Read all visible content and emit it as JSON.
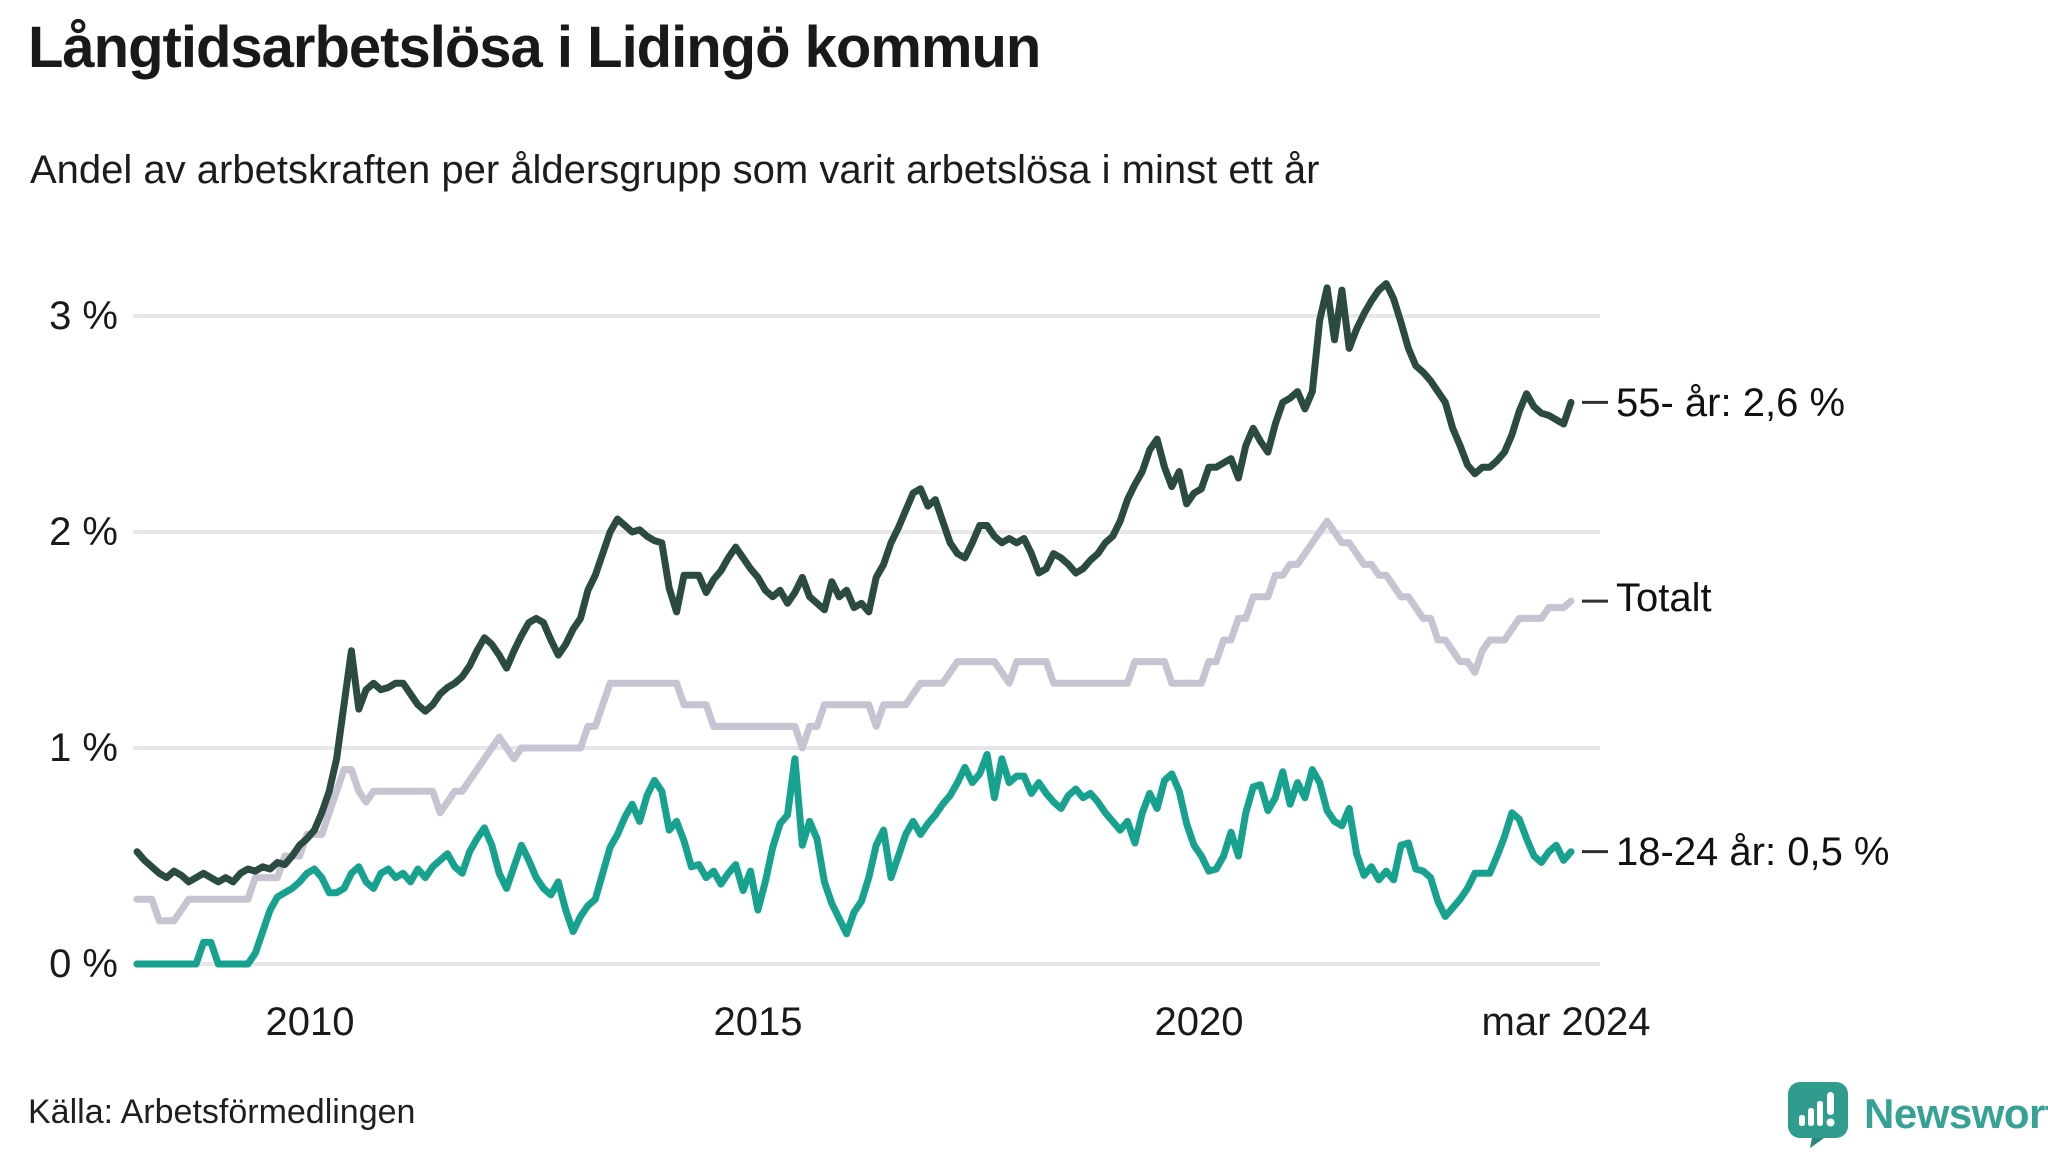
{
  "header": {
    "title": "Långtidsarbetslösa i Lidingö kommun",
    "subtitle": "Andel av arbetskraften per åldersgrupp som varit arbetslösa i minst ett år"
  },
  "chart_data": {
    "type": "line",
    "title": "Långtidsarbetslösa i Lidingö kommun",
    "frequency": "monthly",
    "x_start": "2008-01",
    "x_end": "2024-03",
    "grid": true,
    "legend_position": "right-of-line-end",
    "y_axis": {
      "ticks": [
        "0 %",
        "1 %",
        "2 %",
        "3 %"
      ],
      "unit": "%",
      "range": [
        0,
        3.3
      ]
    },
    "x_axis": {
      "ticks": [
        "2010",
        "2015",
        "2020",
        "mar 2024"
      ]
    },
    "series": [
      {
        "name": "55- år",
        "end_label": "55- år: 2,6 %",
        "end_value": 2.6,
        "color": "#2b4a42",
        "values": [
          0.52,
          0.48,
          0.45,
          0.42,
          0.4,
          0.43,
          0.41,
          0.38,
          0.4,
          0.42,
          0.4,
          0.38,
          0.4,
          0.38,
          0.42,
          0.44,
          0.43,
          0.45,
          0.44,
          0.47,
          0.46,
          0.5,
          0.55,
          0.58,
          0.62,
          0.7,
          0.8,
          0.95,
          1.2,
          1.45,
          1.18,
          1.27,
          1.3,
          1.27,
          1.28,
          1.3,
          1.3,
          1.25,
          1.2,
          1.17,
          1.2,
          1.25,
          1.28,
          1.3,
          1.33,
          1.38,
          1.45,
          1.51,
          1.48,
          1.43,
          1.37,
          1.45,
          1.52,
          1.58,
          1.6,
          1.58,
          1.5,
          1.43,
          1.48,
          1.55,
          1.6,
          1.73,
          1.8,
          1.9,
          2.0,
          2.06,
          2.03,
          2.0,
          2.01,
          1.98,
          1.96,
          1.95,
          1.74,
          1.63,
          1.8,
          1.8,
          1.8,
          1.72,
          1.78,
          1.82,
          1.88,
          1.93,
          1.88,
          1.83,
          1.79,
          1.73,
          1.7,
          1.73,
          1.67,
          1.72,
          1.79,
          1.7,
          1.67,
          1.64,
          1.77,
          1.7,
          1.73,
          1.65,
          1.67,
          1.63,
          1.79,
          1.85,
          1.95,
          2.02,
          2.1,
          2.18,
          2.2,
          2.12,
          2.15,
          2.05,
          1.95,
          1.9,
          1.88,
          1.95,
          2.03,
          2.03,
          1.98,
          1.95,
          1.97,
          1.95,
          1.97,
          1.9,
          1.81,
          1.83,
          1.9,
          1.88,
          1.85,
          1.81,
          1.83,
          1.87,
          1.9,
          1.95,
          1.98,
          2.05,
          2.15,
          2.22,
          2.28,
          2.38,
          2.43,
          2.3,
          2.21,
          2.28,
          2.13,
          2.18,
          2.2,
          2.3,
          2.3,
          2.32,
          2.34,
          2.25,
          2.4,
          2.48,
          2.42,
          2.37,
          2.5,
          2.6,
          2.62,
          2.65,
          2.57,
          2.65,
          2.98,
          3.13,
          2.89,
          3.12,
          2.85,
          2.94,
          3.01,
          3.07,
          3.12,
          3.15,
          3.08,
          2.97,
          2.85,
          2.77,
          2.74,
          2.7,
          2.65,
          2.6,
          2.48,
          2.4,
          2.31,
          2.27,
          2.3,
          2.3,
          2.33,
          2.37,
          2.45,
          2.56,
          2.64,
          2.58,
          2.55,
          2.54,
          2.52,
          2.5,
          2.6
        ]
      },
      {
        "name": "Totalt",
        "end_label": "Totalt",
        "end_value": 1.68,
        "color": "#c6c3d2",
        "values": [
          0.3,
          0.3,
          0.3,
          0.2,
          0.2,
          0.2,
          0.25,
          0.3,
          0.3,
          0.3,
          0.3,
          0.3,
          0.3,
          0.3,
          0.3,
          0.3,
          0.4,
          0.4,
          0.4,
          0.4,
          0.5,
          0.5,
          0.5,
          0.6,
          0.6,
          0.6,
          0.7,
          0.8,
          0.9,
          0.9,
          0.8,
          0.75,
          0.8,
          0.8,
          0.8,
          0.8,
          0.8,
          0.8,
          0.8,
          0.8,
          0.8,
          0.7,
          0.75,
          0.8,
          0.8,
          0.85,
          0.9,
          0.95,
          1.0,
          1.05,
          1.0,
          0.95,
          1.0,
          1.0,
          1.0,
          1.0,
          1.0,
          1.0,
          1.0,
          1.0,
          1.0,
          1.1,
          1.1,
          1.2,
          1.3,
          1.3,
          1.3,
          1.3,
          1.3,
          1.3,
          1.3,
          1.3,
          1.3,
          1.3,
          1.2,
          1.2,
          1.2,
          1.2,
          1.1,
          1.1,
          1.1,
          1.1,
          1.1,
          1.1,
          1.1,
          1.1,
          1.1,
          1.1,
          1.1,
          1.1,
          1.0,
          1.1,
          1.1,
          1.2,
          1.2,
          1.2,
          1.2,
          1.2,
          1.2,
          1.2,
          1.1,
          1.2,
          1.2,
          1.2,
          1.2,
          1.25,
          1.3,
          1.3,
          1.3,
          1.3,
          1.35,
          1.4,
          1.4,
          1.4,
          1.4,
          1.4,
          1.4,
          1.35,
          1.3,
          1.4,
          1.4,
          1.4,
          1.4,
          1.4,
          1.3,
          1.3,
          1.3,
          1.3,
          1.3,
          1.3,
          1.3,
          1.3,
          1.3,
          1.3,
          1.3,
          1.4,
          1.4,
          1.4,
          1.4,
          1.4,
          1.3,
          1.3,
          1.3,
          1.3,
          1.3,
          1.4,
          1.4,
          1.5,
          1.5,
          1.6,
          1.6,
          1.7,
          1.7,
          1.7,
          1.8,
          1.8,
          1.85,
          1.85,
          1.9,
          1.95,
          2.0,
          2.05,
          2.0,
          1.95,
          1.95,
          1.9,
          1.85,
          1.85,
          1.8,
          1.8,
          1.75,
          1.7,
          1.7,
          1.65,
          1.6,
          1.6,
          1.5,
          1.5,
          1.45,
          1.4,
          1.4,
          1.35,
          1.45,
          1.5,
          1.5,
          1.5,
          1.55,
          1.6,
          1.6,
          1.6,
          1.6,
          1.65,
          1.65,
          1.65,
          1.68
        ]
      },
      {
        "name": "18-24 år",
        "end_label": "18-24 år: 0,5 %",
        "end_value": 0.52,
        "color": "#16a28e",
        "values": [
          0.0,
          0.0,
          0.0,
          0.0,
          0.0,
          0.0,
          0.0,
          0.0,
          0.0,
          0.1,
          0.1,
          0.0,
          0.0,
          0.0,
          0.0,
          0.0,
          0.05,
          0.15,
          0.25,
          0.31,
          0.33,
          0.35,
          0.38,
          0.42,
          0.44,
          0.4,
          0.33,
          0.33,
          0.35,
          0.42,
          0.45,
          0.38,
          0.35,
          0.42,
          0.44,
          0.4,
          0.42,
          0.38,
          0.44,
          0.4,
          0.45,
          0.48,
          0.51,
          0.45,
          0.42,
          0.52,
          0.58,
          0.63,
          0.55,
          0.42,
          0.35,
          0.45,
          0.55,
          0.48,
          0.4,
          0.35,
          0.32,
          0.38,
          0.25,
          0.15,
          0.22,
          0.27,
          0.3,
          0.42,
          0.54,
          0.6,
          0.68,
          0.74,
          0.66,
          0.78,
          0.85,
          0.8,
          0.62,
          0.66,
          0.57,
          0.45,
          0.46,
          0.4,
          0.43,
          0.37,
          0.42,
          0.46,
          0.34,
          0.43,
          0.25,
          0.38,
          0.54,
          0.65,
          0.69,
          0.95,
          0.55,
          0.66,
          0.58,
          0.38,
          0.28,
          0.21,
          0.14,
          0.24,
          0.29,
          0.4,
          0.55,
          0.62,
          0.4,
          0.5,
          0.6,
          0.66,
          0.6,
          0.65,
          0.69,
          0.74,
          0.78,
          0.84,
          0.91,
          0.84,
          0.88,
          0.97,
          0.77,
          0.95,
          0.84,
          0.87,
          0.87,
          0.79,
          0.84,
          0.79,
          0.75,
          0.72,
          0.78,
          0.81,
          0.77,
          0.79,
          0.75,
          0.7,
          0.66,
          0.62,
          0.66,
          0.56,
          0.7,
          0.79,
          0.72,
          0.85,
          0.88,
          0.8,
          0.65,
          0.55,
          0.5,
          0.43,
          0.44,
          0.5,
          0.61,
          0.5,
          0.7,
          0.82,
          0.83,
          0.71,
          0.77,
          0.89,
          0.74,
          0.84,
          0.77,
          0.9,
          0.84,
          0.71,
          0.66,
          0.64,
          0.72,
          0.51,
          0.41,
          0.45,
          0.39,
          0.43,
          0.39,
          0.55,
          0.56,
          0.44,
          0.43,
          0.4,
          0.29,
          0.22,
          0.26,
          0.3,
          0.35,
          0.42,
          0.42,
          0.42,
          0.5,
          0.59,
          0.7,
          0.67,
          0.58,
          0.5,
          0.47,
          0.52,
          0.55,
          0.48,
          0.52
        ]
      }
    ]
  },
  "colors": {
    "grid": "#e7e6ea",
    "end_tick": "#2f2f2f",
    "text": "#1a1a1a",
    "brand_teal": "#38a195",
    "brand_icon": "#2f9c8e",
    "brand_icon_shade": "#27897d"
  },
  "footer": {
    "source": "Källa: Arbetsförmedlingen",
    "brand": "Newsworthy"
  }
}
